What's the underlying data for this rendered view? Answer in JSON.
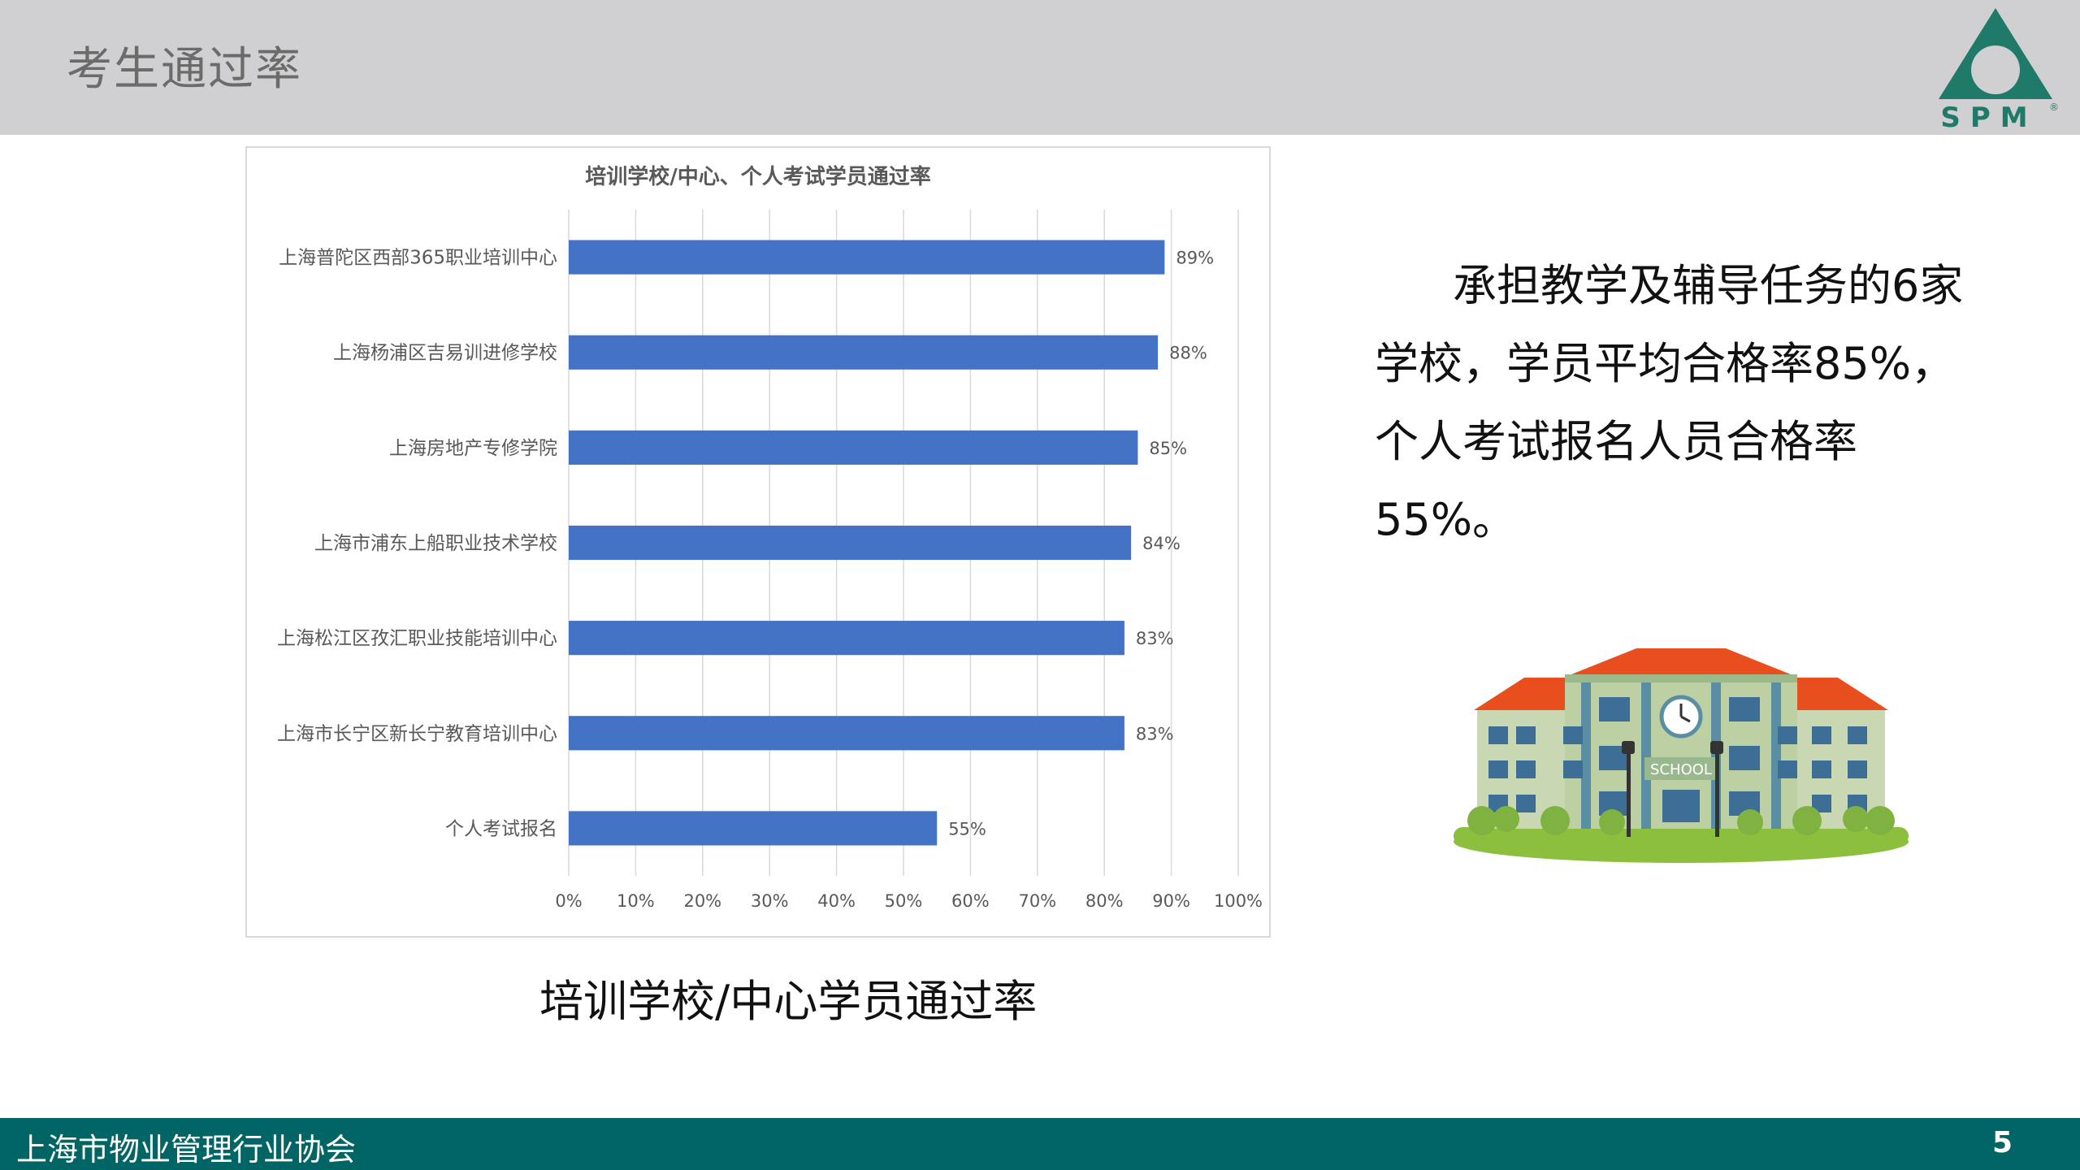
{
  "header": {
    "title": "考生通过率",
    "logo_text": "SPM",
    "logo_mark": "®"
  },
  "chart_data": {
    "type": "bar",
    "orientation": "horizontal",
    "title": "培训学校/中心、个人考试学员通过率",
    "categories": [
      "上海普陀区西部365职业培训中心",
      "上海杨浦区吉易训进修学校",
      "上海房地产专修学院",
      "上海市浦东上船职业技术学校",
      "上海松江区孜汇职业技能培训中心",
      "上海市长宁区新长宁教育培训中心",
      "个人考试报名"
    ],
    "values": [
      89,
      88,
      85,
      84,
      83,
      83,
      55
    ],
    "data_labels": [
      "89%",
      "88%",
      "85%",
      "84%",
      "83%",
      "83%",
      "55%"
    ],
    "x_ticks": [
      "0%",
      "10%",
      "20%",
      "30%",
      "40%",
      "50%",
      "60%",
      "70%",
      "80%",
      "90%",
      "100%"
    ],
    "xlim": [
      0,
      100
    ],
    "grid": "vertical",
    "bar_color": "#4472c4"
  },
  "chart_caption": "培训学校/中心学员通过率",
  "summary": {
    "text": "承担教学及辅导任务的6家学校，学员平均合格率85%，个人考试报名人员合格率55%。"
  },
  "school_illustration": {
    "sign": "SCHOOL"
  },
  "footer": {
    "org": "上海市物业管理行业协会",
    "page": "5"
  },
  "colors": {
    "header_bg": "#d0cfd1",
    "footer_bg": "#006564",
    "logo_green": "#1f7a6a"
  }
}
